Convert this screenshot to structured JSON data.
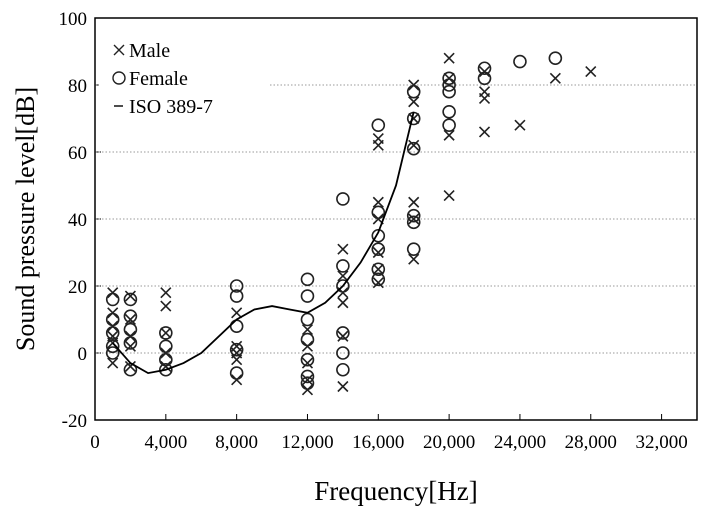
{
  "chart_data": {
    "type": "scatter",
    "xlabel": "Frequency[Hz]",
    "ylabel": "Sound pressure level[dB]",
    "xlim": [
      0,
      34000
    ],
    "xticks": [
      0,
      {
        "value": 4000,
        "label": "4,000"
      },
      {
        "value": 8000,
        "label": "8,000"
      },
      {
        "value": 12000,
        "label": "12,000"
      },
      {
        "value": 16000,
        "label": "16,000"
      },
      {
        "value": 20000,
        "label": "20,000"
      },
      {
        "value": 24000,
        "label": "24,000"
      },
      {
        "value": 28000,
        "label": "28,000"
      },
      {
        "value": 32000,
        "label": "32,000"
      }
    ],
    "ylim": [
      -20,
      100
    ],
    "yticks": [
      -20,
      0,
      20,
      40,
      60,
      80,
      100
    ],
    "grid": true,
    "legend": "upper left",
    "series": [
      {
        "name": "Male",
        "marker": "x",
        "color": "#222222",
        "x": [
          1000,
          1000,
          1000,
          1000,
          1000,
          1000,
          2000,
          2000,
          2000,
          2000,
          2000,
          4000,
          4000,
          4000,
          4000,
          4000,
          8000,
          8000,
          8000,
          8000,
          8000,
          12000,
          12000,
          12000,
          12000,
          12000,
          14000,
          14000,
          14000,
          14000,
          14000,
          14000,
          16000,
          16000,
          16000,
          16000,
          16000,
          16000,
          16000,
          18000,
          18000,
          18000,
          18000,
          18000,
          18000,
          18000,
          20000,
          20000,
          20000,
          20000,
          22000,
          22000,
          22000,
          22000,
          24000,
          26000,
          28000
        ],
        "values": [
          18,
          12,
          8,
          5,
          3,
          -3,
          17,
          10,
          5,
          2,
          -4,
          18,
          14,
          6,
          0,
          -4,
          12,
          2,
          0,
          -2,
          -8,
          7,
          2,
          -3,
          -8,
          -11,
          31,
          23,
          18,
          15,
          5,
          -10,
          45,
          40,
          30,
          25,
          21,
          62,
          64,
          80,
          75,
          70,
          62,
          45,
          40,
          28,
          88,
          82,
          65,
          47,
          84,
          78,
          76,
          66,
          68,
          82,
          84
        ]
      },
      {
        "name": "Female",
        "marker": "o",
        "color": "#222222",
        "x": [
          1000,
          1000,
          1000,
          1000,
          1000,
          2000,
          2000,
          2000,
          2000,
          2000,
          4000,
          4000,
          4000,
          4000,
          8000,
          8000,
          8000,
          8000,
          8000,
          12000,
          12000,
          12000,
          12000,
          12000,
          12000,
          12000,
          14000,
          14000,
          14000,
          14000,
          14000,
          14000,
          16000,
          16000,
          16000,
          16000,
          16000,
          16000,
          18000,
          18000,
          18000,
          18000,
          18000,
          18000,
          20000,
          20000,
          20000,
          20000,
          20000,
          22000,
          22000,
          24000,
          26000
        ],
        "values": [
          16,
          10,
          6,
          2,
          0,
          16,
          11,
          7,
          3,
          -5,
          6,
          2,
          -2,
          -5,
          20,
          17,
          8,
          1,
          -6,
          22,
          17,
          10,
          4,
          -2,
          -7,
          -9,
          46,
          26,
          20,
          6,
          0,
          -5,
          68,
          42,
          35,
          31,
          25,
          22,
          78,
          70,
          61,
          41,
          39,
          31,
          82,
          80,
          78,
          72,
          68,
          85,
          82,
          87,
          88
        ]
      },
      {
        "name": "ISO 389-7",
        "marker": "line",
        "color": "#000000",
        "x": [
          1000,
          2000,
          3000,
          4000,
          5000,
          6000,
          8000,
          9000,
          10000,
          11000,
          12000,
          13000,
          14000,
          15000,
          16000,
          17000,
          18000
        ],
        "values": [
          3,
          -3,
          -6,
          -5,
          -3,
          0,
          10,
          13,
          14,
          13,
          12,
          15,
          20,
          27,
          36,
          50,
          72
        ]
      }
    ]
  }
}
